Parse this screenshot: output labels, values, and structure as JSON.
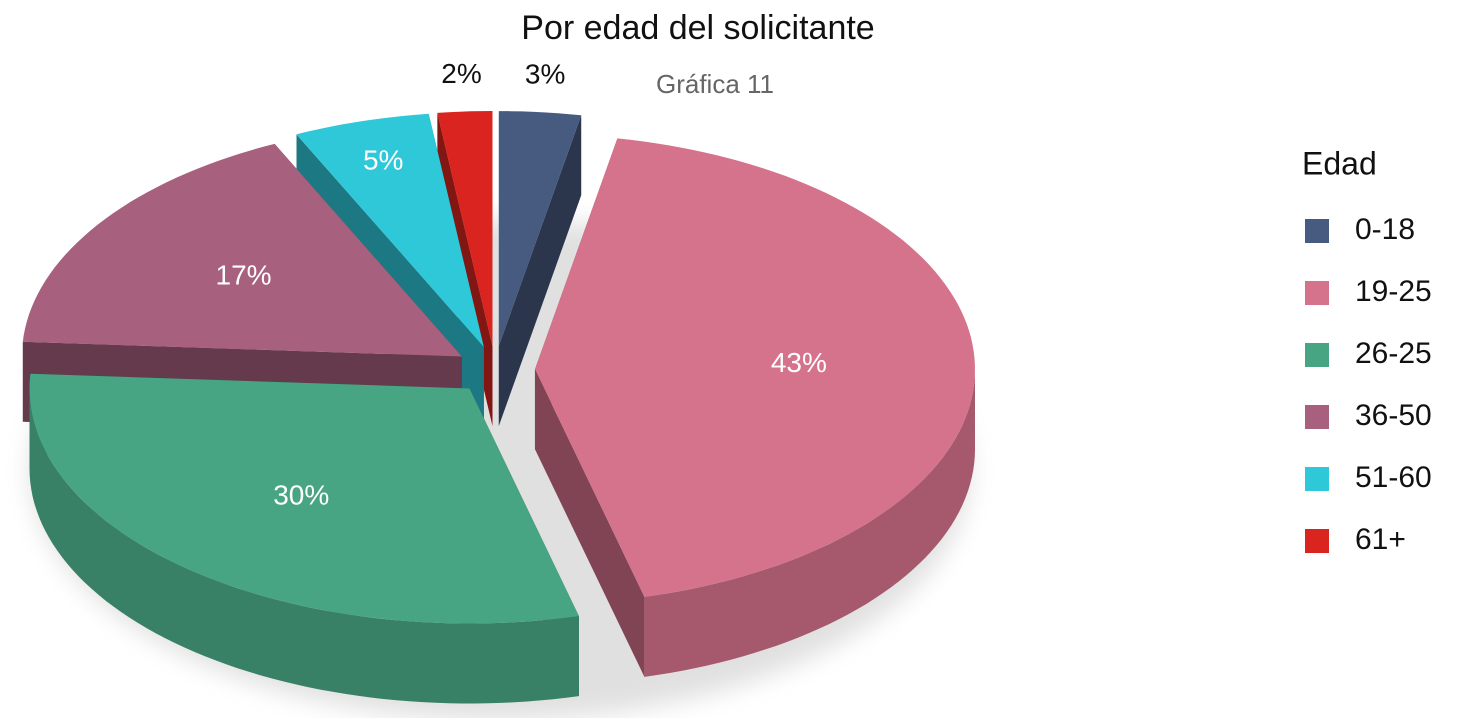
{
  "chart_data": {
    "type": "pie3d",
    "title": "Por edad del solicitante",
    "subtitle": "Gráfica 11",
    "legend_title": "Edad",
    "legend": "right",
    "categories": [
      "0-18",
      "19-25",
      "26-25",
      "36-50",
      "51-60",
      "61+"
    ],
    "values": [
      3,
      43,
      30,
      17,
      5,
      2
    ],
    "value_labels": [
      "3%",
      "43%",
      "30%",
      "17%",
      "5%",
      "2%"
    ],
    "colors": [
      "#475a80",
      "#d5728c",
      "#48a583",
      "#a8607f",
      "#2fc8d8",
      "#d9241f"
    ]
  }
}
